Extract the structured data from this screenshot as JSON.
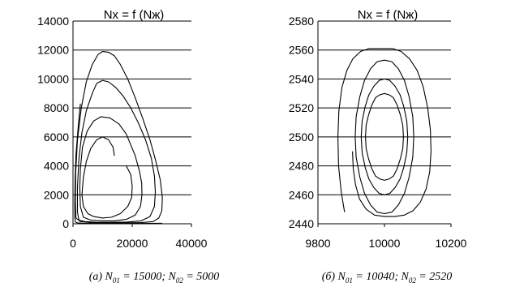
{
  "chart_data": [
    {
      "type": "line",
      "title": "Nx = f (Nж)",
      "xlabel": "",
      "ylabel": "",
      "xlim": [
        0,
        40000
      ],
      "ylim": [
        0,
        14000
      ],
      "xticks": [
        "0",
        "20000",
        "40000"
      ],
      "yticks": [
        "0",
        "2000",
        "4000",
        "6000",
        "8000",
        "10000",
        "12000",
        "14000"
      ],
      "grid": "horizontal",
      "caption": {
        "prefix": "(a) N",
        "sub1": "01",
        "mid": " = 15000; N",
        "sub2": "02",
        "suffix": " = 5000"
      },
      "series": [
        {
          "x": [
            14000,
            13500,
            12000,
            10000,
            8000,
            6000,
            4500,
            3500,
            3000,
            3500,
            5000,
            7000,
            10000,
            13000,
            16000,
            18500,
            19800,
            20000,
            19500,
            18000
          ],
          "y": [
            4700,
            5300,
            5800,
            6000,
            5800,
            5200,
            4300,
            3200,
            2000,
            1200,
            700,
            500,
            400,
            450,
            700,
            1200,
            1800,
            2600,
            3400,
            4000
          ]
        },
        {
          "x": [
            18000,
            15500,
            12500,
            9500,
            7000,
            4800,
            3200,
            2500,
            2300,
            2500,
            3500,
            6000,
            10000,
            14000,
            18000,
            21000,
            22800,
            23300,
            23200,
            22500,
            21000,
            18000
          ],
          "y": [
            6200,
            6900,
            7300,
            7400,
            7100,
            6400,
            5300,
            3800,
            2500,
            1200,
            450,
            250,
            200,
            200,
            300,
            600,
            1200,
            2000,
            2800,
            3600,
            4700,
            6200
          ]
        },
        {
          "x": [
            8000,
            10000,
            12000,
            14500,
            17000,
            19500,
            22000,
            24500,
            26500,
            27500,
            27800,
            27500,
            26000,
            23000,
            18000,
            13000,
            8000,
            4000,
            2000,
            1500,
            1500,
            2000,
            3000,
            4500,
            6500,
            8000
          ],
          "y": [
            9700,
            9900,
            9800,
            9400,
            8800,
            8000,
            7000,
            5800,
            4500,
            3300,
            2200,
            1200,
            500,
            200,
            120,
            100,
            100,
            150,
            250,
            800,
            2500,
            4500,
            6300,
            7800,
            9000,
            9700
          ]
        },
        {
          "x": [
            10000,
            12000,
            14000,
            16000,
            18500,
            21000,
            23500,
            26000,
            28000,
            29500,
            30200,
            30000,
            29000,
            27000,
            23000,
            18000,
            12000,
            6000,
            2500,
            1000,
            800,
            900,
            1500,
            2800,
            4500,
            6500,
            8500,
            10000
          ],
          "y": [
            11900,
            11850,
            11600,
            11000,
            10000,
            8700,
            7300,
            5800,
            4300,
            3000,
            1800,
            900,
            400,
            150,
            80,
            70,
            70,
            80,
            150,
            400,
            1500,
            3500,
            5800,
            8000,
            9800,
            11000,
            11700,
            11900
          ]
        },
        {
          "x": [
            2500,
            1800,
            1000,
            700,
            600,
            600,
            800,
            1500,
            3000,
            5000,
            8000,
            12000,
            18000,
            24000,
            28000,
            30000,
            30100
          ],
          "y": [
            8300,
            6800,
            4800,
            3000,
            1500,
            400,
            120,
            60,
            40,
            30,
            30,
            30,
            30,
            30,
            35,
            40,
            45
          ]
        }
      ]
    },
    {
      "type": "line",
      "title": "Nx = f (Nж)",
      "xlabel": "",
      "ylabel": "",
      "xlim": [
        9800,
        10200
      ],
      "ylim": [
        2440,
        2580
      ],
      "xticks": [
        "9800",
        "10000",
        "10200"
      ],
      "yticks": [
        "2440",
        "2460",
        "2480",
        "2500",
        "2520",
        "2540",
        "2560",
        "2580"
      ],
      "grid": "horizontal",
      "caption": {
        "prefix": "(б) N",
        "sub1": "01",
        "mid": " = 10040; N",
        "sub2": "02",
        "suffix": " = 2520"
      },
      "series": [
        {
          "x": [
            10057,
            10055,
            10048,
            10038,
            10027,
            10015,
            10000,
            9985,
            9973,
            9962,
            9952,
            9945,
            9943,
            9945,
            9952,
            9962,
            9973,
            9985,
            10000,
            10015,
            10027,
            10038,
            10048,
            10055,
            10057
          ],
          "y": [
            2500,
            2508,
            2515,
            2522,
            2527,
            2529,
            2530,
            2529,
            2527,
            2522,
            2515,
            2508,
            2500,
            2492,
            2485,
            2478,
            2473,
            2471,
            2470,
            2471,
            2473,
            2478,
            2485,
            2492,
            2500
          ]
        },
        {
          "x": [
            10070,
            10067,
            10058,
            10047,
            10032,
            10016,
            10000,
            9984,
            9968,
            9953,
            9942,
            9933,
            9930,
            9933,
            9942,
            9953,
            9968,
            9984,
            10000,
            10016,
            10032,
            10047,
            10058,
            10067,
            10070
          ],
          "y": [
            2500,
            2511,
            2521,
            2529,
            2535,
            2539,
            2540,
            2539,
            2535,
            2529,
            2521,
            2511,
            2500,
            2489,
            2479,
            2471,
            2465,
            2461,
            2460,
            2461,
            2465,
            2471,
            2479,
            2489,
            2500
          ]
        },
        {
          "x": [
            10088,
            10085,
            10074,
            10060,
            10042,
            10022,
            10000,
            9978,
            9958,
            9940,
            9926,
            9915,
            9912,
            9915,
            9926,
            9940,
            9958,
            9978,
            10000,
            10022,
            10042,
            10060,
            10074,
            10085,
            10088
          ],
          "y": [
            2500,
            2514,
            2528,
            2539,
            2547,
            2552,
            2553,
            2552,
            2547,
            2539,
            2528,
            2514,
            2500,
            2486,
            2472,
            2461,
            2453,
            2448,
            2447,
            2448,
            2453,
            2461,
            2472,
            2486,
            2500
          ]
        },
        {
          "x": [
            9880,
            9870,
            9862,
            9860,
            9863,
            9872,
            9887,
            9905,
            9928,
            9954,
            9980,
            10000,
            10025,
            10050,
            10075,
            10098,
            10116,
            10130,
            10138,
            10140,
            10136,
            10125,
            10108,
            10086,
            10060,
            10030,
            10000,
            9970,
            9945,
            9925,
            9913,
            9906,
            9904
          ],
          "y": [
            2448,
            2462,
            2480,
            2500,
            2518,
            2534,
            2546,
            2554,
            2559,
            2561,
            2561,
            2561,
            2561,
            2559,
            2554,
            2546,
            2535,
            2520,
            2505,
            2490,
            2476,
            2464,
            2455,
            2449,
            2446,
            2445,
            2445,
            2446,
            2450,
            2457,
            2467,
            2478,
            2490
          ]
        }
      ]
    }
  ]
}
